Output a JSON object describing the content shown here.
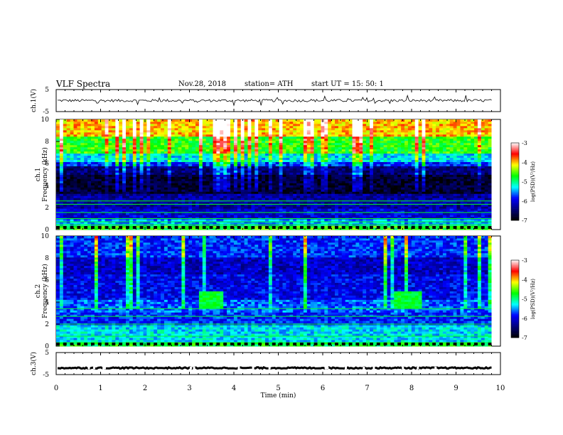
{
  "header": {
    "title": "VLF  Spectra",
    "date": "Nov.28, 2018",
    "station": "station= ATH",
    "start": "start  UT  =    15: 50: 1"
  },
  "chart_data": [
    {
      "type": "line",
      "id": "ch1-waveform",
      "ylabel": "ch.1(V)",
      "ylim": [
        -5,
        5
      ],
      "ytick_labels": [
        "5",
        "-5"
      ],
      "xlim": [
        0,
        10
      ],
      "x_end": 9.8,
      "baseline": 0,
      "amplitude": 0.6,
      "color": "#000000"
    },
    {
      "type": "heatmap",
      "id": "ch1-spectrogram",
      "ylabel": "Frequency  (kHz)",
      "channel_label": "ch.1",
      "ylim": [
        0,
        10
      ],
      "ytick_labels": [
        "0",
        "2",
        "4",
        "6",
        "8",
        "10"
      ],
      "xlim": [
        0,
        10
      ],
      "x_end": 9.8,
      "bands": [
        {
          "from": 0.0,
          "to": 0.3,
          "level": 0.58
        },
        {
          "from": 0.3,
          "to": 1.0,
          "level": 0.38
        },
        {
          "from": 1.0,
          "to": 2.0,
          "level": 0.24
        },
        {
          "from": 2.0,
          "to": 3.2,
          "level": 0.18
        },
        {
          "from": 3.2,
          "to": 5.0,
          "level": 0.06
        },
        {
          "from": 5.0,
          "to": 5.8,
          "level": 0.14
        },
        {
          "from": 5.8,
          "to": 6.2,
          "level": 0.3
        },
        {
          "from": 6.2,
          "to": 7.0,
          "level": 0.42
        },
        {
          "from": 7.0,
          "to": 8.5,
          "level": 0.58
        },
        {
          "from": 8.5,
          "to": 10.0,
          "level": 0.75
        }
      ],
      "lines_khz": [
        0.45,
        0.7,
        1.0,
        1.55,
        2.3,
        2.6
      ],
      "patches": []
    },
    {
      "type": "heatmap",
      "id": "ch2-spectrogram",
      "ylabel": "Frequency  (kHz)",
      "channel_label": "ch.2",
      "ylim": [
        0,
        10
      ],
      "ytick_labels": [
        "0",
        "2",
        "4",
        "6",
        "8",
        "10"
      ],
      "xlim": [
        0,
        10
      ],
      "x_end": 9.8,
      "bands": [
        {
          "from": 0.0,
          "to": 0.4,
          "level": 0.55
        },
        {
          "from": 0.4,
          "to": 2.0,
          "level": 0.42
        },
        {
          "from": 2.0,
          "to": 3.0,
          "level": 0.3
        },
        {
          "from": 3.0,
          "to": 4.2,
          "level": 0.34
        },
        {
          "from": 4.2,
          "to": 6.5,
          "level": 0.26
        },
        {
          "from": 6.5,
          "to": 8.0,
          "level": 0.22
        },
        {
          "from": 8.0,
          "to": 10.0,
          "level": 0.3
        }
      ],
      "lines_khz": [
        0.3,
        0.9,
        2.0,
        2.7,
        3.4
      ],
      "patches": [
        {
          "t_from": 3.2,
          "t_to": 3.8,
          "f_from": 3.4,
          "f_to": 5.0,
          "level": 0.55
        },
        {
          "t_from": 7.6,
          "t_to": 8.2,
          "f_from": 3.4,
          "f_to": 5.0,
          "level": 0.55
        }
      ]
    },
    {
      "type": "line",
      "id": "ch3-waveform",
      "ylabel": "ch.3(V)",
      "ylim": [
        -5,
        5
      ],
      "ytick_labels": [
        "5",
        "-5"
      ],
      "xlim": [
        0,
        10
      ],
      "x_end": 9.8,
      "baseline": -2,
      "amplitude": 0.3,
      "color": "#000000"
    }
  ],
  "x_axis": {
    "label": "Time  (min)",
    "tick_labels": [
      "0",
      "1",
      "2",
      "3",
      "4",
      "5",
      "6",
      "7",
      "8",
      "9",
      "10"
    ]
  },
  "colorbars": [
    {
      "id": "cb1",
      "label": "log(PSD)(V²/Hz)",
      "tick_labels": [
        "-3",
        "-4",
        "-5",
        "-6",
        "-7"
      ],
      "range": [
        -7,
        -3
      ]
    },
    {
      "id": "cb2",
      "label": "log(PSD)(V²/Hz)",
      "tick_labels": [
        "-3",
        "-4",
        "-5",
        "-6",
        "-7"
      ],
      "range": [
        -7,
        -3
      ]
    }
  ],
  "colormap": [
    "#ffffff",
    "#ff0000",
    "#ffff00",
    "#00ff00",
    "#00ffff",
    "#0000ff",
    "#00007a",
    "#000000"
  ]
}
